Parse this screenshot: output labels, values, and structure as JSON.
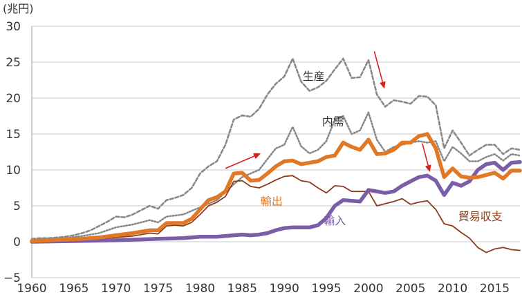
{
  "chart_data": {
    "type": "line",
    "unit_label": "(兆円)",
    "ylim": [
      -5,
      30
    ],
    "xlim": [
      1960,
      2018
    ],
    "y_ticks": [
      -5,
      0,
      5,
      10,
      15,
      20,
      25,
      30
    ],
    "y_tick_labels": [
      "−5",
      "0",
      "5",
      "10",
      "15",
      "20",
      "25",
      "30"
    ],
    "x_ticks": [
      1960,
      1965,
      1970,
      1975,
      1980,
      1985,
      1990,
      1995,
      2000,
      2005,
      2010,
      2015
    ],
    "x_tick_labels": [
      "1960",
      "1965",
      "1970",
      "1975",
      "1980",
      "1985",
      "1990",
      "1995",
      "2000",
      "2005",
      "2010",
      "2015"
    ],
    "grid": true,
    "series": [
      {
        "name": "生産",
        "color": "#888888",
        "style": "dashed",
        "points": [
          [
            1960,
            0.4
          ],
          [
            1961,
            0.5
          ],
          [
            1962,
            0.5
          ],
          [
            1963,
            0.6
          ],
          [
            1964,
            0.7
          ],
          [
            1965,
            0.9
          ],
          [
            1966,
            1.2
          ],
          [
            1967,
            1.6
          ],
          [
            1968,
            2.2
          ],
          [
            1969,
            2.8
          ],
          [
            1970,
            3.5
          ],
          [
            1971,
            3.4
          ],
          [
            1972,
            3.8
          ],
          [
            1973,
            4.4
          ],
          [
            1974,
            5.0
          ],
          [
            1975,
            4.6
          ],
          [
            1976,
            5.8
          ],
          [
            1977,
            6.1
          ],
          [
            1978,
            6.5
          ],
          [
            1979,
            7.5
          ],
          [
            1980,
            9.5
          ],
          [
            1981,
            10.5
          ],
          [
            1982,
            11.2
          ],
          [
            1983,
            13.5
          ],
          [
            1984,
            17.0
          ],
          [
            1985,
            17.6
          ],
          [
            1986,
            17.4
          ],
          [
            1987,
            18.5
          ],
          [
            1988,
            20.5
          ],
          [
            1989,
            22.0
          ],
          [
            1990,
            23.0
          ],
          [
            1991,
            25.5
          ],
          [
            1992,
            22.3
          ],
          [
            1993,
            21.0
          ],
          [
            1994,
            21.5
          ],
          [
            1995,
            22.4
          ],
          [
            1996,
            24.0
          ],
          [
            1997,
            25.5
          ],
          [
            1998,
            22.8
          ],
          [
            1999,
            22.9
          ],
          [
            2000,
            25.3
          ],
          [
            2001,
            20.5
          ],
          [
            2002,
            18.8
          ],
          [
            2003,
            19.7
          ],
          [
            2004,
            19.5
          ],
          [
            2005,
            19.2
          ],
          [
            2006,
            20.3
          ],
          [
            2007,
            20.2
          ],
          [
            2008,
            19.0
          ],
          [
            2009,
            13.0
          ],
          [
            2010,
            15.5
          ],
          [
            2011,
            13.8
          ],
          [
            2012,
            12.0
          ],
          [
            2013,
            12.8
          ],
          [
            2014,
            13.5
          ],
          [
            2015,
            13.5
          ],
          [
            2016,
            12.2
          ],
          [
            2017,
            13.0
          ],
          [
            2018,
            12.8
          ]
        ]
      },
      {
        "name": "内需",
        "color": "#888888",
        "style": "dotted",
        "points": [
          [
            1960,
            0.3
          ],
          [
            1962,
            0.4
          ],
          [
            1964,
            0.5
          ],
          [
            1966,
            0.8
          ],
          [
            1968,
            1.2
          ],
          [
            1970,
            2.0
          ],
          [
            1972,
            2.4
          ],
          [
            1974,
            3.0
          ],
          [
            1975,
            2.7
          ],
          [
            1976,
            3.5
          ],
          [
            1978,
            3.8
          ],
          [
            1980,
            4.8
          ],
          [
            1982,
            5.8
          ],
          [
            1984,
            8.0
          ],
          [
            1985,
            9.0
          ],
          [
            1986,
            9.5
          ],
          [
            1987,
            10.0
          ],
          [
            1988,
            11.5
          ],
          [
            1989,
            13.0
          ],
          [
            1990,
            13.5
          ],
          [
            1991,
            16.0
          ],
          [
            1992,
            13.3
          ],
          [
            1993,
            12.3
          ],
          [
            1994,
            12.8
          ],
          [
            1995,
            14.0
          ],
          [
            1996,
            17.0
          ],
          [
            1997,
            17.5
          ],
          [
            1998,
            15.0
          ],
          [
            1999,
            15.5
          ],
          [
            2000,
            18.0
          ],
          [
            2001,
            14.2
          ],
          [
            2002,
            12.5
          ],
          [
            2003,
            13.2
          ],
          [
            2004,
            13.5
          ],
          [
            2005,
            13.8
          ],
          [
            2006,
            14.0
          ],
          [
            2007,
            13.8
          ],
          [
            2008,
            14.0
          ],
          [
            2009,
            11.2
          ],
          [
            2010,
            13.2
          ],
          [
            2011,
            12.3
          ],
          [
            2012,
            11.2
          ],
          [
            2013,
            11.2
          ],
          [
            2014,
            11.8
          ],
          [
            2015,
            12.2
          ],
          [
            2016,
            11.3
          ],
          [
            2017,
            12.2
          ],
          [
            2018,
            12.0
          ]
        ]
      },
      {
        "name": "輸出",
        "color": "#e07826",
        "style": "thick",
        "points": [
          [
            1960,
            0.1
          ],
          [
            1962,
            0.2
          ],
          [
            1964,
            0.3
          ],
          [
            1966,
            0.4
          ],
          [
            1968,
            0.6
          ],
          [
            1970,
            0.9
          ],
          [
            1972,
            1.2
          ],
          [
            1974,
            1.6
          ],
          [
            1975,
            1.6
          ],
          [
            1976,
            2.6
          ],
          [
            1977,
            2.6
          ],
          [
            1978,
            2.6
          ],
          [
            1979,
            3.2
          ],
          [
            1980,
            4.5
          ],
          [
            1981,
            5.8
          ],
          [
            1982,
            6.2
          ],
          [
            1983,
            7.0
          ],
          [
            1984,
            9.5
          ],
          [
            1985,
            9.6
          ],
          [
            1986,
            8.5
          ],
          [
            1987,
            8.6
          ],
          [
            1988,
            9.5
          ],
          [
            1989,
            10.5
          ],
          [
            1990,
            11.2
          ],
          [
            1991,
            11.3
          ],
          [
            1992,
            10.8
          ],
          [
            1993,
            11.0
          ],
          [
            1994,
            11.2
          ],
          [
            1995,
            11.8
          ],
          [
            1996,
            12.0
          ],
          [
            1997,
            13.8
          ],
          [
            1998,
            13.2
          ],
          [
            1999,
            12.8
          ],
          [
            2000,
            14.2
          ],
          [
            2001,
            12.2
          ],
          [
            2002,
            12.3
          ],
          [
            2003,
            12.8
          ],
          [
            2004,
            13.8
          ],
          [
            2005,
            13.8
          ],
          [
            2006,
            14.7
          ],
          [
            2007,
            15.0
          ],
          [
            2008,
            13.0
          ],
          [
            2009,
            9.0
          ],
          [
            2010,
            10.2
          ],
          [
            2011,
            9.1
          ],
          [
            2012,
            8.9
          ],
          [
            2013,
            9.0
          ],
          [
            2014,
            9.3
          ],
          [
            2015,
            9.6
          ],
          [
            2016,
            8.8
          ],
          [
            2017,
            9.9
          ],
          [
            2018,
            9.9
          ]
        ]
      },
      {
        "name": "輸入",
        "color": "#7b5ea7",
        "style": "thick",
        "points": [
          [
            1960,
            0.0
          ],
          [
            1965,
            0.1
          ],
          [
            1970,
            0.2
          ],
          [
            1975,
            0.4
          ],
          [
            1978,
            0.5
          ],
          [
            1980,
            0.7
          ],
          [
            1982,
            0.7
          ],
          [
            1984,
            0.9
          ],
          [
            1985,
            1.0
          ],
          [
            1986,
            0.9
          ],
          [
            1987,
            1.0
          ],
          [
            1988,
            1.2
          ],
          [
            1989,
            1.6
          ],
          [
            1990,
            1.9
          ],
          [
            1991,
            2.0
          ],
          [
            1992,
            2.0
          ],
          [
            1993,
            2.0
          ],
          [
            1994,
            2.3
          ],
          [
            1995,
            3.3
          ],
          [
            1996,
            5.0
          ],
          [
            1997,
            5.8
          ],
          [
            1998,
            5.7
          ],
          [
            1999,
            5.6
          ],
          [
            2000,
            7.2
          ],
          [
            2001,
            7.0
          ],
          [
            2002,
            6.8
          ],
          [
            2003,
            7.0
          ],
          [
            2004,
            7.8
          ],
          [
            2005,
            8.4
          ],
          [
            2006,
            9.0
          ],
          [
            2007,
            9.2
          ],
          [
            2008,
            8.5
          ],
          [
            2009,
            6.5
          ],
          [
            2010,
            8.2
          ],
          [
            2011,
            7.8
          ],
          [
            2012,
            8.4
          ],
          [
            2013,
            10.0
          ],
          [
            2014,
            10.8
          ],
          [
            2015,
            11.0
          ],
          [
            2016,
            10.0
          ],
          [
            2017,
            11.0
          ],
          [
            2018,
            11.1
          ]
        ]
      },
      {
        "name": "貿易収支",
        "color": "#8b3a1a",
        "style": "thin",
        "points": [
          [
            1960,
            0.1
          ],
          [
            1965,
            0.2
          ],
          [
            1970,
            0.6
          ],
          [
            1972,
            0.8
          ],
          [
            1974,
            1.2
          ],
          [
            1975,
            1.1
          ],
          [
            1976,
            2.2
          ],
          [
            1977,
            2.3
          ],
          [
            1978,
            2.2
          ],
          [
            1979,
            2.7
          ],
          [
            1980,
            3.8
          ],
          [
            1981,
            5.0
          ],
          [
            1982,
            5.5
          ],
          [
            1983,
            6.3
          ],
          [
            1984,
            8.4
          ],
          [
            1985,
            8.5
          ],
          [
            1986,
            7.7
          ],
          [
            1987,
            7.5
          ],
          [
            1988,
            8.0
          ],
          [
            1989,
            8.6
          ],
          [
            1990,
            9.1
          ],
          [
            1991,
            9.2
          ],
          [
            1992,
            8.5
          ],
          [
            1993,
            8.3
          ],
          [
            1994,
            7.5
          ],
          [
            1995,
            6.8
          ],
          [
            1996,
            7.8
          ],
          [
            1997,
            7.7
          ],
          [
            1998,
            7.0
          ],
          [
            1999,
            7.0
          ],
          [
            2000,
            7.0
          ],
          [
            2001,
            5.0
          ],
          [
            2002,
            5.3
          ],
          [
            2003,
            5.6
          ],
          [
            2004,
            6.0
          ],
          [
            2005,
            5.2
          ],
          [
            2006,
            5.5
          ],
          [
            2007,
            5.7
          ],
          [
            2008,
            4.5
          ],
          [
            2009,
            2.5
          ],
          [
            2010,
            2.2
          ],
          [
            2011,
            1.3
          ],
          [
            2012,
            0.5
          ],
          [
            2013,
            -0.8
          ],
          [
            2014,
            -1.5
          ],
          [
            2015,
            -1.0
          ],
          [
            2016,
            -0.8
          ],
          [
            2017,
            -1.1
          ],
          [
            2018,
            -1.2
          ]
        ]
      }
    ],
    "annotations": [
      {
        "text": "生産",
        "x": 1993.5,
        "y": 22.5,
        "color": "#333333"
      },
      {
        "text": "内需",
        "x": 1995.8,
        "y": 16.2,
        "color": "#333333"
      },
      {
        "text": "輸出",
        "x": 1988.5,
        "y": 5.1,
        "color": "#e07826"
      },
      {
        "text": "輸入",
        "x": 1996.0,
        "y": 2.4,
        "color": "#7b5ea7"
      },
      {
        "text": "貿易収支",
        "x": 2013.3,
        "y": 3.0,
        "color": "#8b3a1a"
      }
    ],
    "arrows": [
      {
        "from": [
          1983.0,
          10.2
        ],
        "to": [
          1987.2,
          12.3
        ],
        "color": "#d42020"
      },
      {
        "from": [
          2000.7,
          26.5
        ],
        "to": [
          2001.9,
          21.3
        ],
        "color": "#d42020"
      },
      {
        "from": [
          2006.4,
          13.7
        ],
        "to": [
          2007.3,
          9.7
        ],
        "color": "#d42020"
      }
    ]
  }
}
